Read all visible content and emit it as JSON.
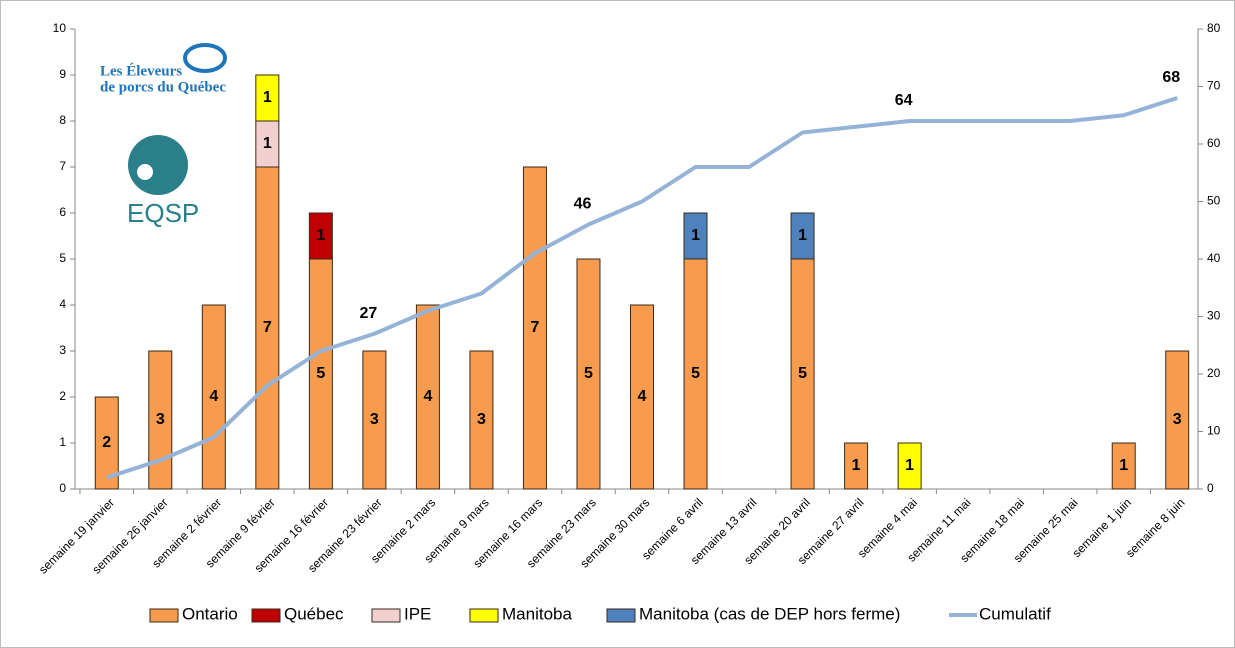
{
  "logo_texts": [
    "Les Éleveurs",
    "de porcs du Québec",
    "EQSP"
  ],
  "chart_data": {
    "type": "bar",
    "stacked": true,
    "categories": [
      "semaine 19 janvier",
      "semaine 26 janvier",
      "semaine 2 février",
      "semaine 9 février",
      "semaine 16 février",
      "semaine 23 février",
      "semaine 2 mars",
      "semaine 9 mars",
      "semaine 16 mars",
      "semaine 23 mars",
      "semaine 30 mars",
      "semaine 6 avril",
      "semaine 13 avril",
      "semaine 20 avril",
      "semaine 27 avril",
      "semaine 4 mai",
      "semaine 11 mai",
      "semaine 18 mai",
      "semaine 25 mai",
      "semaine 1 juin",
      "semaine 8 juin"
    ],
    "series": [
      {
        "name": "Ontario",
        "color": "#f79c4f",
        "values": [
          2,
          3,
          4,
          7,
          5,
          3,
          4,
          3,
          7,
          5,
          4,
          5,
          null,
          5,
          1,
          null,
          null,
          null,
          null,
          1,
          3
        ]
      },
      {
        "name": "Québec",
        "color": "#c00000",
        "values": [
          null,
          null,
          null,
          null,
          1,
          null,
          null,
          null,
          null,
          null,
          null,
          null,
          null,
          null,
          null,
          null,
          null,
          null,
          null,
          null,
          null
        ]
      },
      {
        "name": "IPE",
        "color": "#f2d0d0",
        "values": [
          null,
          null,
          null,
          1,
          null,
          null,
          null,
          null,
          null,
          null,
          null,
          null,
          null,
          null,
          null,
          null,
          null,
          null,
          null,
          null,
          null
        ]
      },
      {
        "name": "Manitoba",
        "color": "#ffff00",
        "values": [
          null,
          null,
          null,
          1,
          null,
          null,
          null,
          null,
          null,
          null,
          null,
          null,
          null,
          null,
          null,
          1,
          null,
          null,
          null,
          null,
          null
        ]
      },
      {
        "name": "Manitoba (cas de DEP hors ferme)",
        "color": "#4f81bd",
        "values": [
          null,
          null,
          null,
          null,
          null,
          null,
          null,
          null,
          null,
          null,
          null,
          1,
          null,
          1,
          null,
          null,
          null,
          null,
          null,
          null,
          null
        ]
      },
      {
        "name": "Cumulatif",
        "type": "line",
        "axis": "y2",
        "color": "#95b3d7",
        "values": [
          2,
          5,
          9,
          18,
          24,
          27,
          31,
          34,
          41,
          46,
          50,
          56,
          56,
          62,
          63,
          64,
          64,
          64,
          64,
          65,
          68
        ],
        "value_labels": [
          null,
          null,
          null,
          null,
          null,
          "27",
          null,
          null,
          null,
          "46",
          null,
          null,
          null,
          null,
          null,
          "64",
          null,
          null,
          null,
          null,
          "68"
        ]
      }
    ],
    "ylim": [
      0,
      10
    ],
    "yticks": [
      0,
      1,
      2,
      3,
      4,
      5,
      6,
      7,
      8,
      9,
      10
    ],
    "y2lim": [
      0,
      80
    ],
    "y2ticks": [
      0,
      10,
      20,
      30,
      40,
      50,
      60,
      70,
      80
    ],
    "legend": "bottom"
  }
}
